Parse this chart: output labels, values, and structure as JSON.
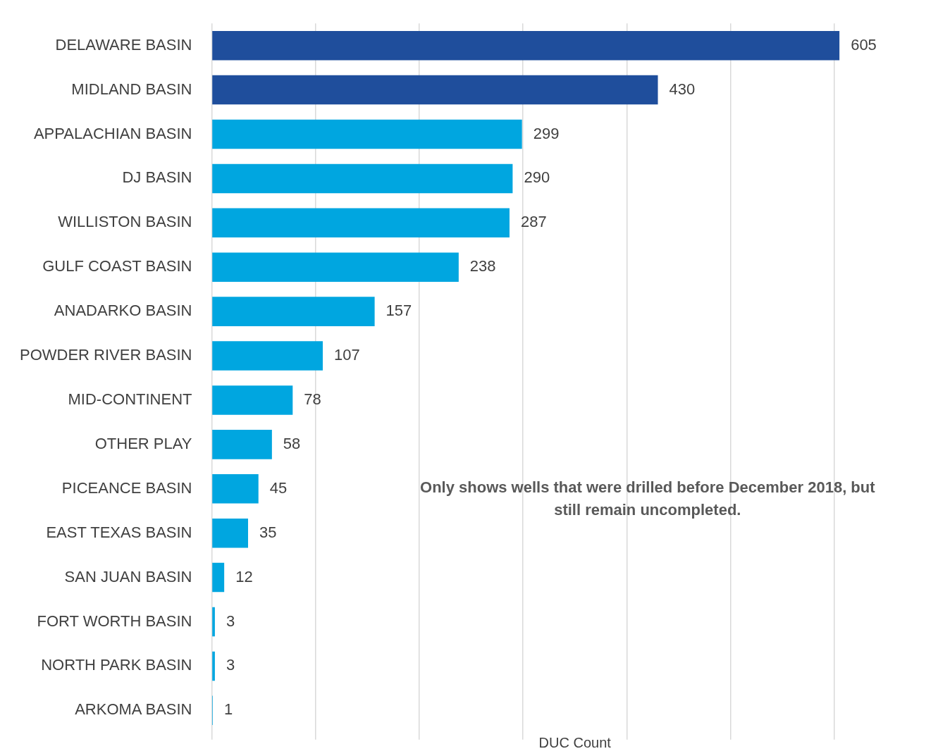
{
  "chart_data": {
    "type": "bar",
    "orientation": "horizontal",
    "xlabel": "DUC Count",
    "categories": [
      "DELAWARE BASIN",
      "MIDLAND BASIN",
      "APPALACHIAN BASIN",
      "DJ BASIN",
      "WILLISTON BASIN",
      "GULF COAST BASIN",
      "ANADARKO BASIN",
      "POWDER RIVER BASIN",
      "MID-CONTINENT",
      "OTHER PLAY",
      "PICEANCE BASIN",
      "EAST TEXAS BASIN",
      "SAN JUAN BASIN",
      "FORT WORTH BASIN",
      "NORTH PARK BASIN",
      "ARKOMA BASIN"
    ],
    "values": [
      605,
      430,
      299,
      290,
      287,
      238,
      157,
      107,
      78,
      58,
      45,
      35,
      12,
      3,
      3,
      1
    ],
    "colors": [
      "#1f4e9c",
      "#1f4e9c",
      "#00a6e0",
      "#00a6e0",
      "#00a6e0",
      "#00a6e0",
      "#00a6e0",
      "#00a6e0",
      "#00a6e0",
      "#00a6e0",
      "#00a6e0",
      "#00a6e0",
      "#00a6e0",
      "#00a6e0",
      "#00a6e0",
      "#00a6e0"
    ],
    "xticks": [
      {
        "value": 0,
        "label": null
      },
      {
        "value": 100,
        "label": null
      },
      {
        "value": 200,
        "label": null
      },
      {
        "value": 300,
        "label": null
      },
      {
        "value": 400,
        "label": null
      },
      {
        "value": 500,
        "label": null
      },
      {
        "value": 600,
        "label": null
      }
    ],
    "tick_labels": "y",
    "grid": "x",
    "data_labels": true,
    "annotations": [
      "Only shows wells that were drilled before December 2018, but still remain uncompleted."
    ]
  }
}
